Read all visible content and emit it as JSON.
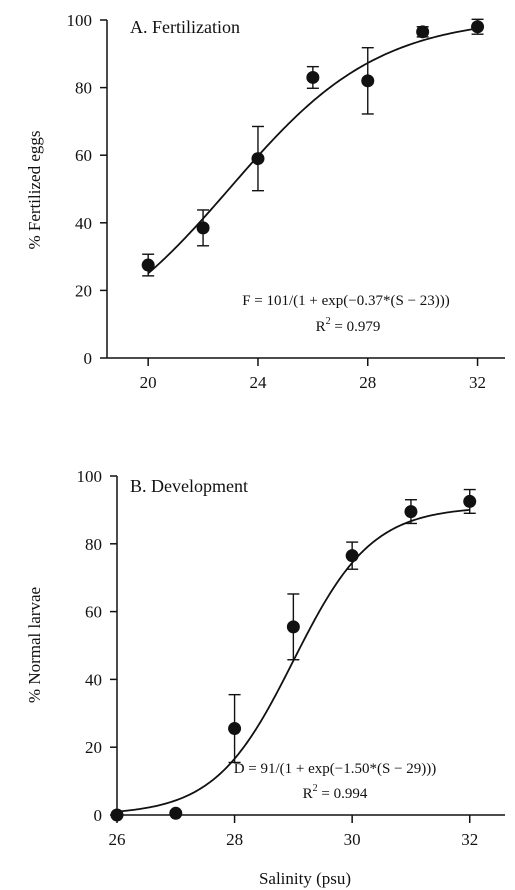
{
  "chart_data": [
    {
      "type": "scatter",
      "title": "A. Fertilization",
      "xlabel": "",
      "ylabel": "% Fertilized eggs",
      "xlim": [
        18.5,
        33
      ],
      "ylim": [
        0,
        100
      ],
      "xticks": [
        20,
        24,
        28,
        32
      ],
      "yticks": [
        0,
        20,
        40,
        60,
        80,
        100
      ],
      "points": [
        {
          "x": 20,
          "y": 27.5,
          "err": 3.2
        },
        {
          "x": 22,
          "y": 38.5,
          "err": 5.3
        },
        {
          "x": 24,
          "y": 59,
          "err": 9.5
        },
        {
          "x": 26,
          "y": 83,
          "err": 3.2
        },
        {
          "x": 28,
          "y": 82,
          "err": 9.8
        },
        {
          "x": 30,
          "y": 96.5,
          "err": 1.5
        },
        {
          "x": 32,
          "y": 98,
          "err": 2.2
        }
      ],
      "fit": {
        "A": 101,
        "k": 0.37,
        "x0": 23
      },
      "equation": "F = 101/(1 + exp(−0.37*(S − 23)))",
      "r2_prefix": "R",
      "r2_sup": "2",
      "r2_value": " = 0.979",
      "grid": false
    },
    {
      "type": "scatter",
      "title": "B. Development",
      "xlabel": "Salinity (psu)",
      "ylabel": "% Normal larvae",
      "xlim": [
        26,
        32.6
      ],
      "ylim": [
        0,
        100
      ],
      "xticks": [
        26,
        28,
        30,
        32
      ],
      "yticks": [
        0,
        20,
        40,
        60,
        80,
        100
      ],
      "points": [
        {
          "x": 26,
          "y": 0,
          "err": 0
        },
        {
          "x": 27,
          "y": 0.5,
          "err": 0
        },
        {
          "x": 28,
          "y": 25.5,
          "err": 10
        },
        {
          "x": 29,
          "y": 55.5,
          "err": 9.7
        },
        {
          "x": 30,
          "y": 76.5,
          "err": 4
        },
        {
          "x": 31,
          "y": 89.5,
          "err": 3.5
        },
        {
          "x": 32,
          "y": 92.5,
          "err": 3.5
        }
      ],
      "fit": {
        "A": 91,
        "k": 1.5,
        "x0": 29
      },
      "equation": "D = 91/(1 + exp(−1.50*(S − 29)))",
      "r2_prefix": "R",
      "r2_sup": "2",
      "r2_value": " = 0.994",
      "grid": false
    }
  ]
}
